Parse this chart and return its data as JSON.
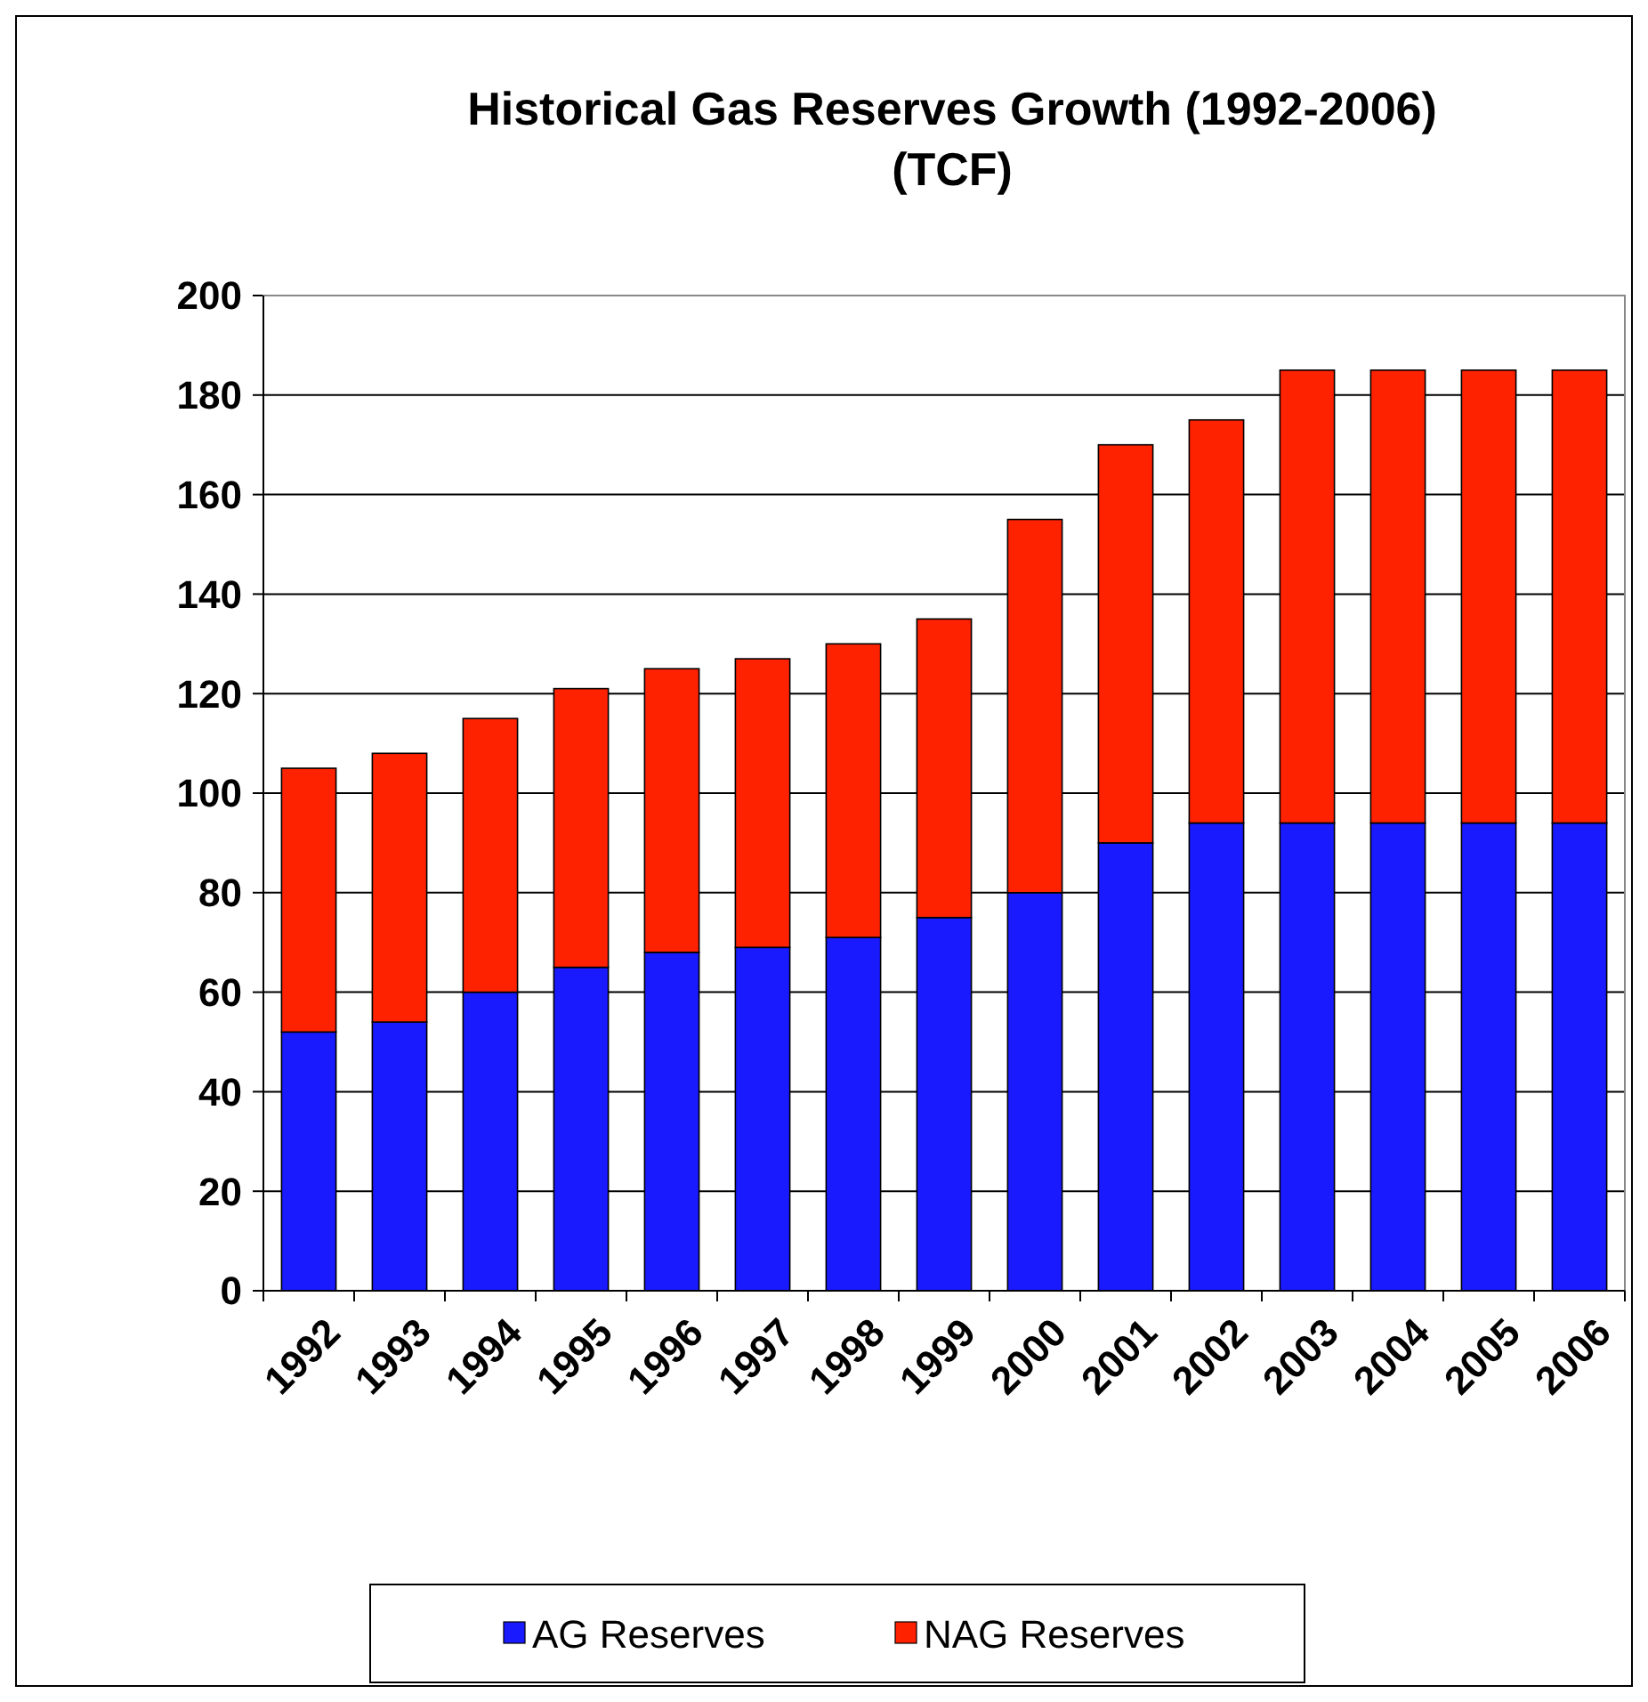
{
  "chart_data": {
    "type": "bar",
    "title": "Historical Gas Reserves Growth (1992-2006)",
    "subtitle": "(TCF)",
    "categories": [
      "1992",
      "1993",
      "1994",
      "1995",
      "1996",
      "1997",
      "1998",
      "1999",
      "2000",
      "2001",
      "2002",
      "2003",
      "2004",
      "2005",
      "2006"
    ],
    "stacked": true,
    "series": [
      {
        "name": "AG Reserves",
        "color": "#1a1aff",
        "values": [
          52,
          54,
          60,
          65,
          68,
          69,
          71,
          75,
          80,
          90,
          94,
          94,
          94,
          94,
          94
        ]
      },
      {
        "name": "NAG Reserves",
        "color": "#ff2200",
        "values": [
          53,
          54,
          55,
          56,
          57,
          58,
          59,
          60,
          75,
          80,
          81,
          91,
          91,
          91,
          91
        ]
      }
    ],
    "ylim": [
      0,
      200
    ],
    "yticks": [
      0,
      20,
      40,
      60,
      80,
      100,
      120,
      140,
      160,
      180,
      200
    ],
    "grid": "y",
    "legend": "bottom"
  }
}
